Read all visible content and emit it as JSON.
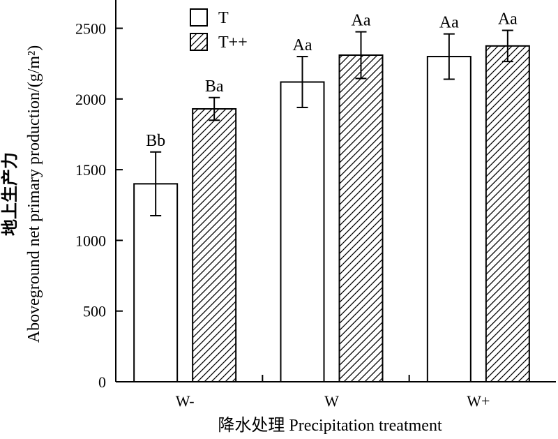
{
  "chart_data": {
    "type": "bar",
    "categories": [
      "W-",
      "W",
      "W+"
    ],
    "series": [
      {
        "name": "T",
        "fill": "plain",
        "values": [
          1400,
          2120,
          2300
        ],
        "error": [
          225,
          180,
          160
        ],
        "labels": [
          "Bb",
          "Aa",
          "Aa"
        ]
      },
      {
        "name": "T++",
        "fill": "hatched",
        "values": [
          1930,
          2310,
          2375
        ],
        "error": [
          80,
          165,
          110
        ],
        "labels": [
          "Ba",
          "Aa",
          "Aa"
        ]
      }
    ],
    "ylim": [
      0,
      2700
    ],
    "yticks": [
      0,
      500,
      1000,
      1500,
      2000,
      2500
    ],
    "xlabel": "降水处理 Precipitation treatment",
    "ylabel_cn": "地上生产力",
    "ylabel_en": "Aboveground net primary production/(g/m²)",
    "grid": false,
    "legend": "top-left"
  }
}
